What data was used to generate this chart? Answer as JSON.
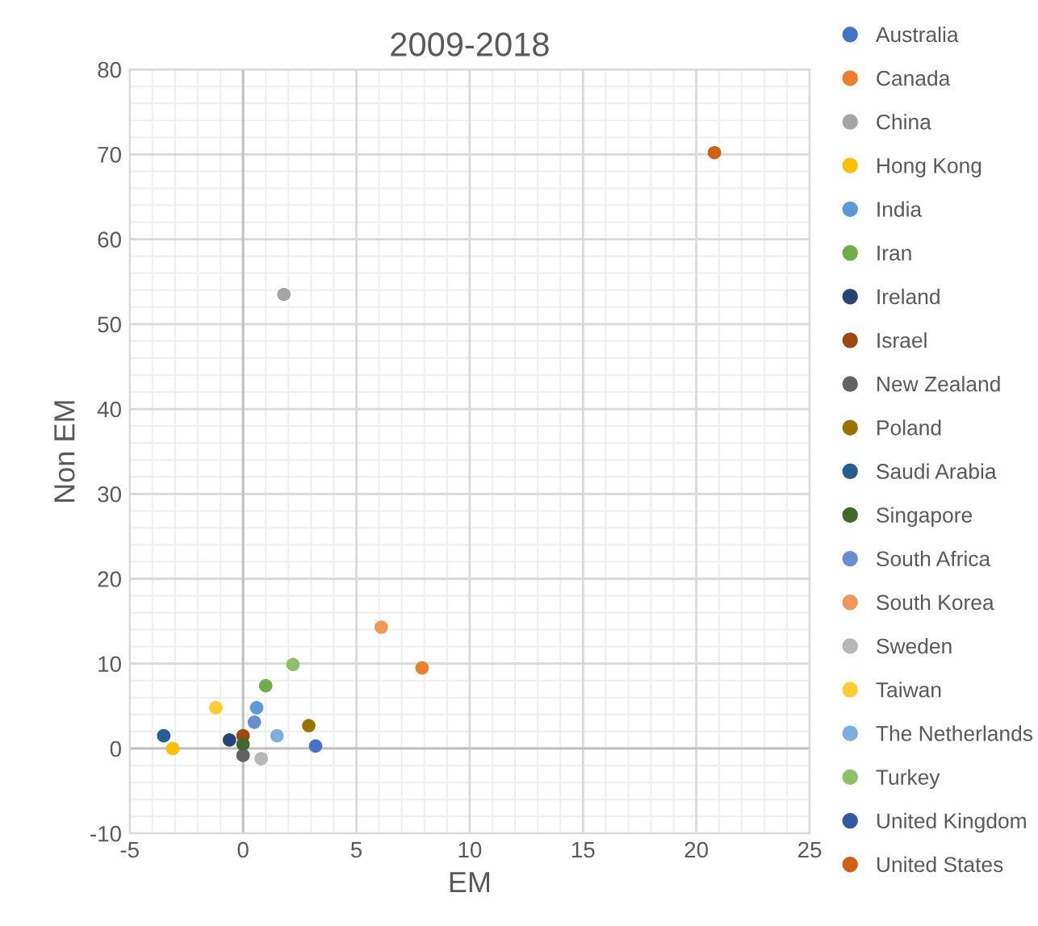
{
  "chart_data": {
    "type": "scatter",
    "title": "2009-2018",
    "xlabel": "EM",
    "ylabel": "Non EM",
    "xlim": [
      -5,
      25
    ],
    "ylim": [
      -10,
      80
    ],
    "xticks": [
      -5,
      0,
      5,
      10,
      15,
      20,
      25
    ],
    "yticks": [
      -10,
      0,
      10,
      20,
      30,
      40,
      50,
      60,
      70,
      80
    ],
    "grid": true,
    "legend": "right",
    "marker": "circle",
    "series": [
      {
        "name": "Australia",
        "color": "#4472c4",
        "x": [
          3.2
        ],
        "values": [
          0.3
        ]
      },
      {
        "name": "Canada",
        "color": "#ed7d31",
        "x": [
          7.9
        ],
        "values": [
          9.5
        ]
      },
      {
        "name": "China",
        "color": "#a5a5a5",
        "x": [
          1.8
        ],
        "values": [
          53.5
        ]
      },
      {
        "name": "Hong Kong",
        "color": "#ffc000",
        "x": [
          -3.1
        ],
        "values": [
          0
        ]
      },
      {
        "name": "India",
        "color": "#5b9bd5",
        "x": [
          0.6
        ],
        "values": [
          4.8
        ]
      },
      {
        "name": "Iran",
        "color": "#70ad47",
        "x": [
          1.0
        ],
        "values": [
          7.4
        ]
      },
      {
        "name": "Ireland",
        "color": "#264478",
        "x": [
          -0.6
        ],
        "values": [
          1.0
        ]
      },
      {
        "name": "Israel",
        "color": "#9e480e",
        "x": [
          0
        ],
        "values": [
          1.5
        ]
      },
      {
        "name": "New Zealand",
        "color": "#636363",
        "x": [
          0
        ],
        "values": [
          -0.8
        ]
      },
      {
        "name": "Poland",
        "color": "#997300",
        "x": [
          2.9
        ],
        "values": [
          2.7
        ]
      },
      {
        "name": "Saudi Arabia",
        "color": "#255e91",
        "x": [
          -3.5
        ],
        "values": [
          1.5
        ]
      },
      {
        "name": "Singapore",
        "color": "#43682b",
        "x": [
          0
        ],
        "values": [
          0.5
        ]
      },
      {
        "name": "South Africa",
        "color": "#698ed0",
        "x": [
          0.5
        ],
        "values": [
          3.1
        ]
      },
      {
        "name": "South Korea",
        "color": "#f1975a",
        "x": [
          6.1
        ],
        "values": [
          14.3
        ]
      },
      {
        "name": "Sweden",
        "color": "#b7b7b7",
        "x": [
          0.8
        ],
        "values": [
          -1.2
        ]
      },
      {
        "name": "Taiwan",
        "color": "#ffcd33",
        "x": [
          -1.2
        ],
        "values": [
          4.8
        ]
      },
      {
        "name": "The Netherlands",
        "color": "#7cafdd",
        "x": [
          1.5
        ],
        "values": [
          1.5
        ]
      },
      {
        "name": "Turkey",
        "color": "#8cc168",
        "x": [
          2.2
        ],
        "values": [
          9.9
        ]
      },
      {
        "name": "United Kingdom",
        "color": "#335aa1",
        "x": [
          null
        ],
        "values": [
          null
        ]
      },
      {
        "name": "United States",
        "color": "#d26012",
        "x": [
          20.8
        ],
        "values": [
          70.2
        ]
      }
    ]
  }
}
